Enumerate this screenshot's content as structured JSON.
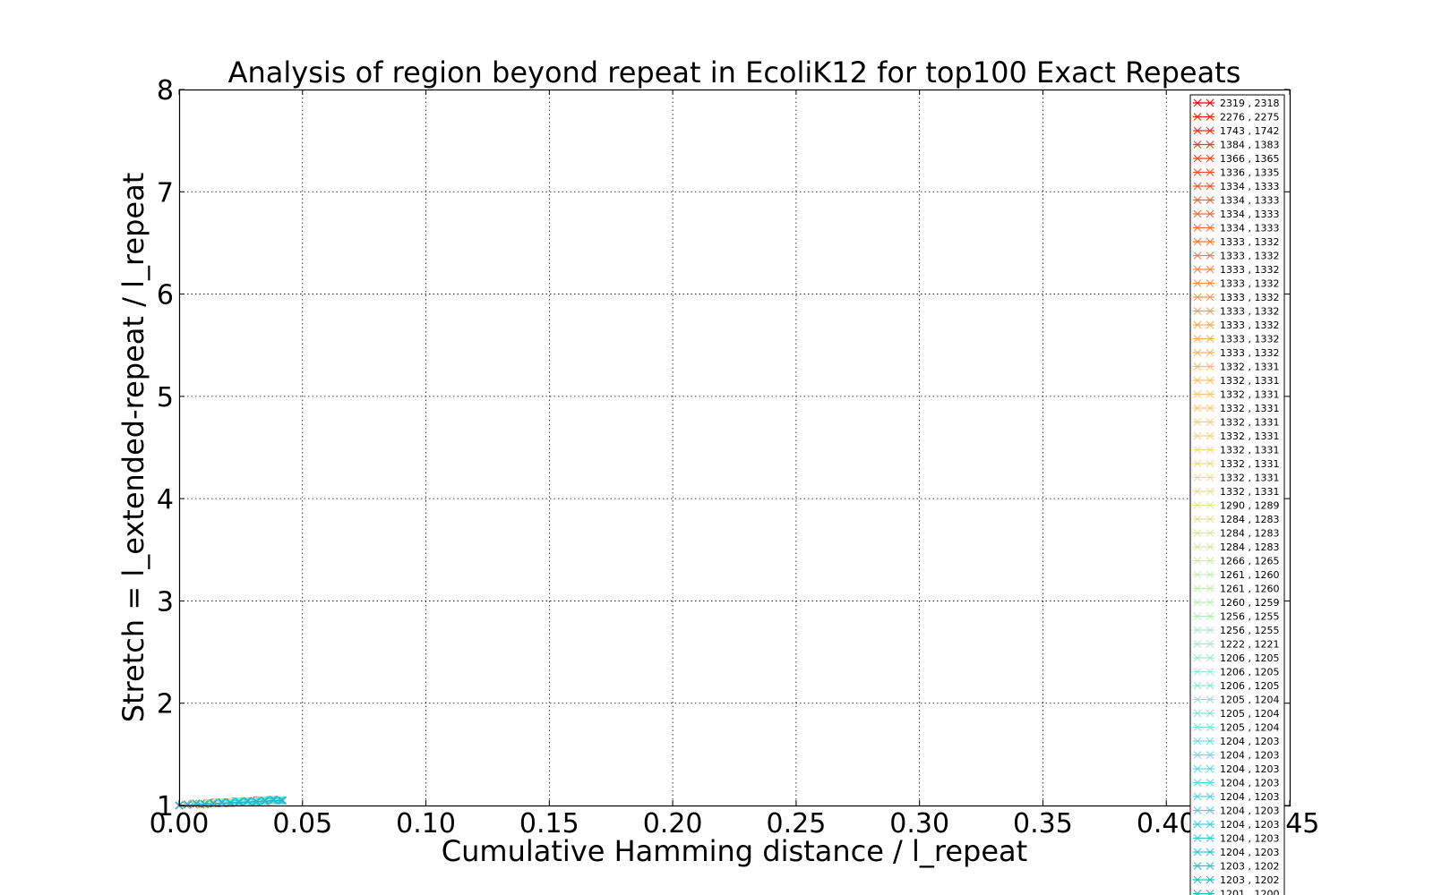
{
  "chart_data": {
    "type": "line",
    "title": "Analysis of region beyond repeat in EcoliK12 for top100 Exact Repeats",
    "xlabel": "Cumulative Hamming distance / l_repeat",
    "ylabel": "Stretch =  l_extended-repeat / l_repeat",
    "xlim": [
      0.0,
      0.45
    ],
    "ylim": [
      1,
      8
    ],
    "x_ticks": [
      "0.00",
      "0.05",
      "0.10",
      "0.15",
      "0.20",
      "0.25",
      "0.30",
      "0.35",
      "0.40",
      "0.45"
    ],
    "y_ticks": [
      "1",
      "2",
      "3",
      "4",
      "5",
      "6",
      "7",
      "8"
    ],
    "grid": true,
    "legend_position": "right",
    "marker": "x",
    "data_note_range": {
      "x": [
        0.0,
        0.042
      ],
      "y": [
        1.0,
        1.05
      ]
    },
    "series": [
      {
        "name": "2319 , 2318",
        "color": "#ff0000"
      },
      {
        "name": "2276 , 2275",
        "color": "#ff1a0d"
      },
      {
        "name": "1743 , 1742",
        "color": "#ff2a12"
      },
      {
        "name": "1384 , 1383",
        "color": "#ff3518"
      },
      {
        "name": "1366 , 1365",
        "color": "#ff401d"
      },
      {
        "name": "1336 , 1335",
        "color": "#ff4a22"
      },
      {
        "name": "1334 , 1333",
        "color": "#ff5427"
      },
      {
        "name": "1334 , 1333",
        "color": "#ff5e2c"
      },
      {
        "name": "1334 , 1333",
        "color": "#ff6731"
      },
      {
        "name": "1334 , 1333",
        "color": "#ff7036"
      },
      {
        "name": "1333 , 1332",
        "color": "#ff783b"
      },
      {
        "name": "1333 , 1332",
        "color": "#ff8040"
      },
      {
        "name": "1333 , 1332",
        "color": "#ff8845"
      },
      {
        "name": "1333 , 1332",
        "color": "#ff904a"
      },
      {
        "name": "1333 , 1332",
        "color": "#ff984f"
      },
      {
        "name": "1333 , 1332",
        "color": "#ff9f54"
      },
      {
        "name": "1333 , 1332",
        "color": "#ffa659"
      },
      {
        "name": "1333 , 1332",
        "color": "#ffad5e"
      },
      {
        "name": "1333 , 1332",
        "color": "#ffb363"
      },
      {
        "name": "1332 , 1331",
        "color": "#ffb968"
      },
      {
        "name": "1332 , 1331",
        "color": "#ffbf6d"
      },
      {
        "name": "1332 , 1331",
        "color": "#ffc472"
      },
      {
        "name": "1332 , 1331",
        "color": "#ffc977"
      },
      {
        "name": "1332 , 1331",
        "color": "#ffce7c"
      },
      {
        "name": "1332 , 1331",
        "color": "#fcd281"
      },
      {
        "name": "1332 , 1331",
        "color": "#f8d686"
      },
      {
        "name": "1332 , 1331",
        "color": "#f4da8b"
      },
      {
        "name": "1332 , 1331",
        "color": "#f0dd90"
      },
      {
        "name": "1332 , 1331",
        "color": "#ece095"
      },
      {
        "name": "1290 , 1289",
        "color": "#e7e39a"
      },
      {
        "name": "1284 , 1283",
        "color": "#e2e59f"
      },
      {
        "name": "1284 , 1283",
        "color": "#dde7a4"
      },
      {
        "name": "1284 , 1283",
        "color": "#d8e9a9"
      },
      {
        "name": "1266 , 1265",
        "color": "#d2eaae"
      },
      {
        "name": "1261 , 1260",
        "color": "#ccebb3"
      },
      {
        "name": "1261 , 1260",
        "color": "#c6ecb8"
      },
      {
        "name": "1260 , 1259",
        "color": "#bfecbd"
      },
      {
        "name": "1256 , 1255",
        "color": "#b8ecc2"
      },
      {
        "name": "1256 , 1255",
        "color": "#b1ecc7"
      },
      {
        "name": "1222 , 1221",
        "color": "#aaebcc"
      },
      {
        "name": "1206 , 1205",
        "color": "#a2ead1"
      },
      {
        "name": "1206 , 1205",
        "color": "#9ae9d5"
      },
      {
        "name": "1206 , 1205",
        "color": "#92e8d9"
      },
      {
        "name": "1205 , 1204",
        "color": "#8ae6dc"
      },
      {
        "name": "1205 , 1204",
        "color": "#82e4df"
      },
      {
        "name": "1205 , 1204",
        "color": "#7ae2e1"
      },
      {
        "name": "1204 , 1203",
        "color": "#72e0e2"
      },
      {
        "name": "1204 , 1203",
        "color": "#6adee3"
      },
      {
        "name": "1204 , 1203",
        "color": "#62dbe3"
      },
      {
        "name": "1204 , 1203",
        "color": "#5ad8e2"
      },
      {
        "name": "1204 , 1203",
        "color": "#52d5e1"
      },
      {
        "name": "1204 , 1203",
        "color": "#4ad2df"
      },
      {
        "name": "1204 , 1203",
        "color": "#42cfdd"
      },
      {
        "name": "1204 , 1203",
        "color": "#3acbda"
      },
      {
        "name": "1204 , 1203",
        "color": "#32c7d7"
      },
      {
        "name": "1203 , 1202",
        "color": "#2ac3d3"
      },
      {
        "name": "1203 , 1202",
        "color": "#22bfcf"
      },
      {
        "name": "1201 , 1200",
        "color": "#1abbcb"
      }
    ]
  }
}
